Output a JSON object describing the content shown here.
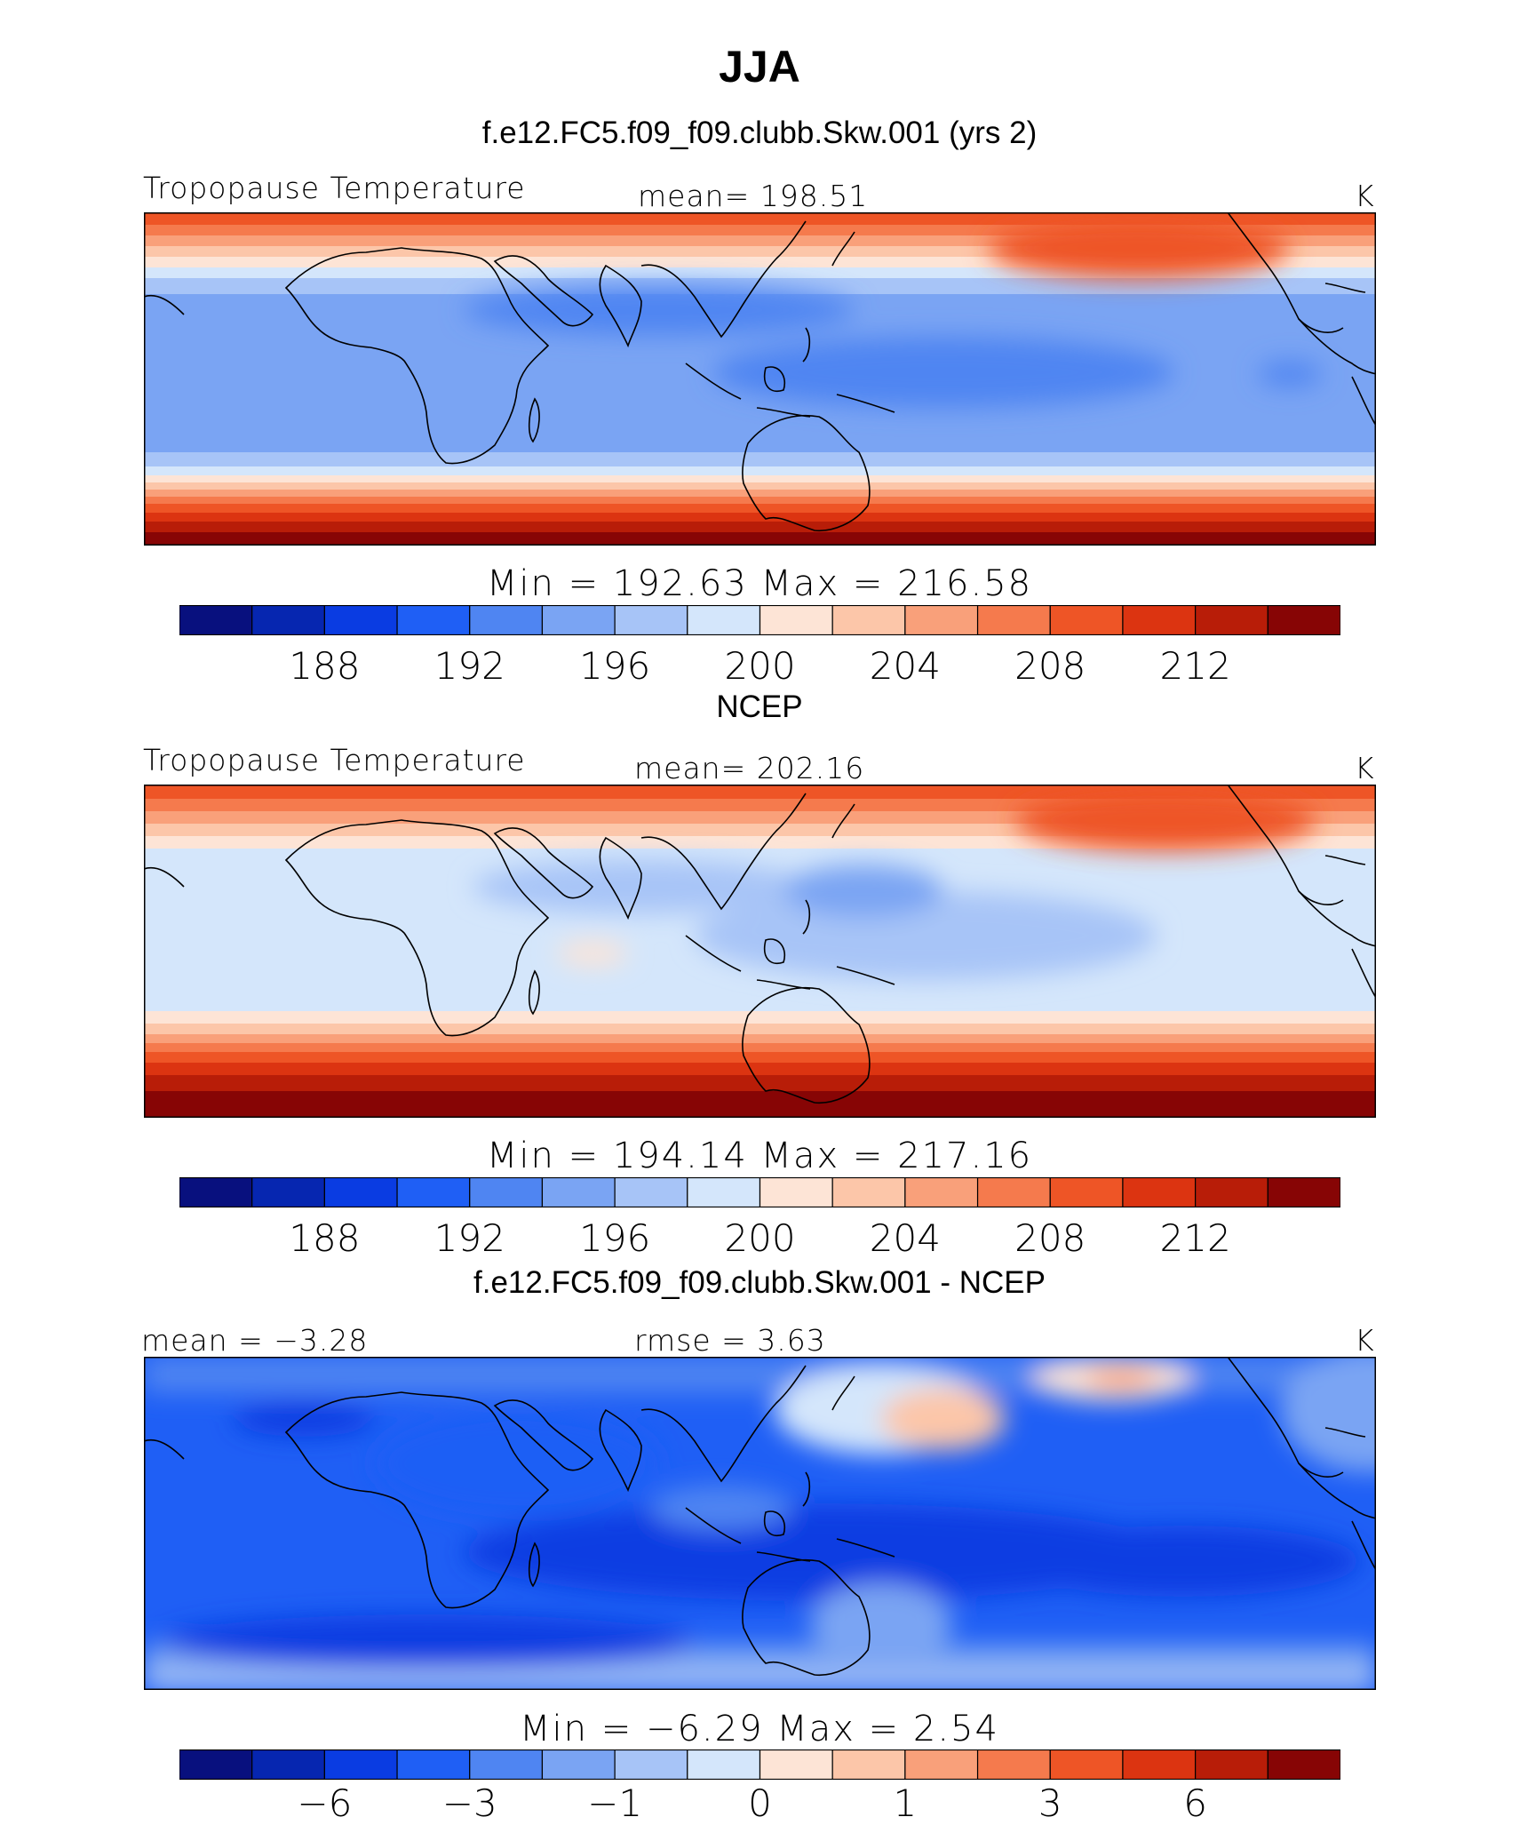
{
  "title": "JJA",
  "panels": [
    {
      "subtitle": "f.e12.FC5.f09_f09.clubb.Skw.001 (yrs 2)",
      "left_label": "Tropopause Temperature",
      "center_label": "mean=  198.51",
      "units": "K",
      "minmax": "Min  =  192.63  Max  =  216.58",
      "ticks": [
        "188",
        "192",
        "196",
        "200",
        "204",
        "208",
        "212"
      ]
    },
    {
      "subtitle": "NCEP",
      "left_label": "Tropopause Temperature",
      "center_label": "mean=  202.16",
      "units": "K",
      "minmax": "Min  =  194.14  Max  =  217.16",
      "ticks": [
        "188",
        "192",
        "196",
        "200",
        "204",
        "208",
        "212"
      ]
    },
    {
      "subtitle": "f.e12.FC5.f09_f09.clubb.Skw.001 - NCEP",
      "left_label": "mean =   −3.28",
      "center_label": "rmse =    3.63",
      "units": "K",
      "minmax": "Min  =   −6.29  Max  =    2.54",
      "ticks": [
        "−6",
        "−3",
        "−1",
        "0",
        "1",
        "3",
        "6"
      ]
    }
  ],
  "colors": {
    "palette": [
      "#08107e",
      "#0626b0",
      "#0a3ce2",
      "#1f5ff5",
      "#4f85f2",
      "#7aa4f3",
      "#a7c4f7",
      "#d4e6fb",
      "#fde4d6",
      "#fcc6a9",
      "#f9a07a",
      "#f57a4d",
      "#ee5526",
      "#dc3411",
      "#b81d08",
      "#870505"
    ],
    "coastline": "#000000"
  }
}
